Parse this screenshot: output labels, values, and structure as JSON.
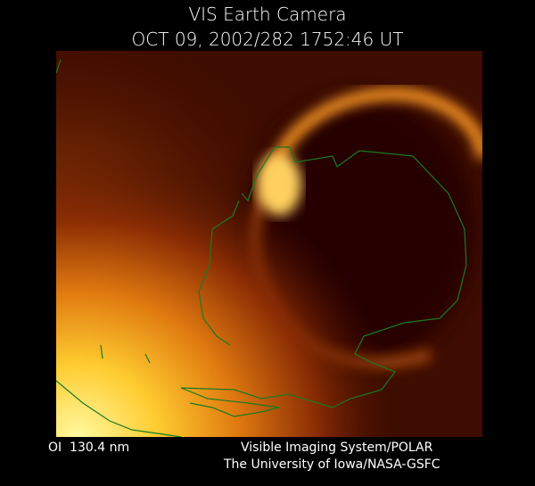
{
  "header": {
    "title": "VIS Earth Camera",
    "timestamp": "OCT 09, 2002/282 1752:46 UT"
  },
  "footer": {
    "filter": "OI  130.4 nm",
    "instrument": "Visible Imaging System/POLAR",
    "institution": "The University of Iowa/NASA-GSFC"
  }
}
